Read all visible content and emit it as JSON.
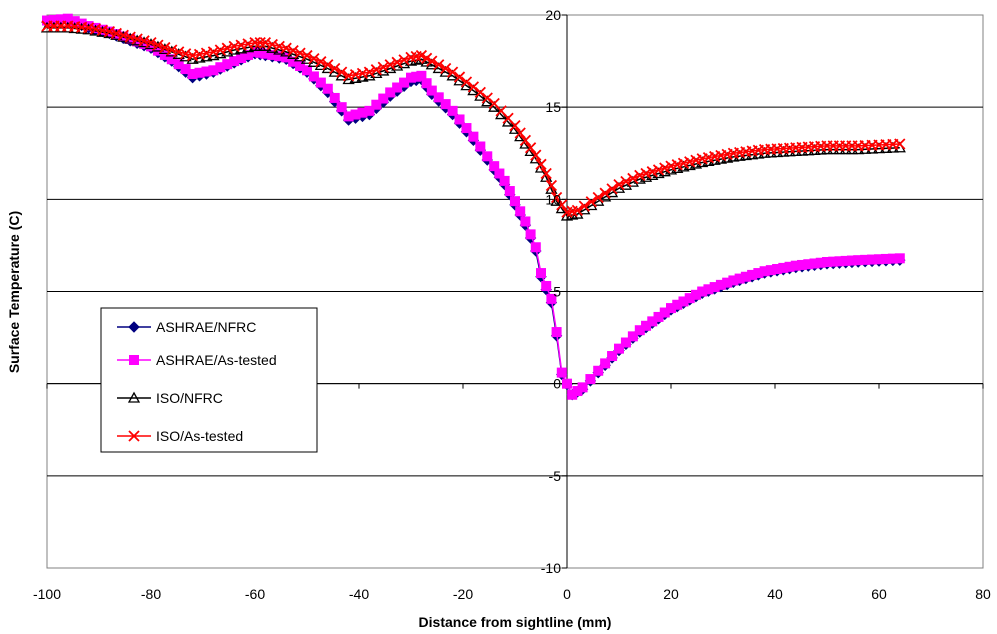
{
  "chart_data": {
    "type": "line",
    "title": "",
    "xlabel": "Distance from sightline (mm)",
    "ylabel": "Surface Temperature (C)",
    "xlim": [
      -100,
      80
    ],
    "ylim": [
      -10,
      20
    ],
    "xticks": [
      -100,
      -80,
      -60,
      -40,
      -20,
      0,
      20,
      40,
      60,
      80
    ],
    "yticks": [
      -10,
      -5,
      0,
      5,
      10,
      15,
      20
    ],
    "x_tick_labels": [
      "-100",
      "-80",
      "-60",
      "-40",
      "-20",
      "0",
      "20",
      "40",
      "60",
      "80"
    ],
    "y_tick_labels": [
      "-10",
      "-5",
      "0",
      "5",
      "10",
      "15",
      "20"
    ],
    "grid": "horizontal",
    "legend": "left",
    "series": [
      {
        "name": "ASHRAE/NFRC",
        "color": "#000080",
        "marker": "diamond",
        "points": [
          [
            -100,
            19.6
          ],
          [
            -96,
            19.7
          ],
          [
            -92,
            19.3
          ],
          [
            -88,
            19.0
          ],
          [
            -84,
            18.6
          ],
          [
            -80,
            18.2
          ],
          [
            -76,
            17.5
          ],
          [
            -72,
            16.6
          ],
          [
            -68,
            16.9
          ],
          [
            -64,
            17.4
          ],
          [
            -60,
            17.9
          ],
          [
            -58,
            17.8
          ],
          [
            -54,
            17.6
          ],
          [
            -50,
            16.9
          ],
          [
            -46,
            15.8
          ],
          [
            -42,
            14.3
          ],
          [
            -38,
            14.6
          ],
          [
            -34,
            15.6
          ],
          [
            -30,
            16.4
          ],
          [
            -28,
            16.5
          ],
          [
            -26,
            15.7
          ],
          [
            -22,
            14.6
          ],
          [
            -18,
            13.2
          ],
          [
            -14,
            11.6
          ],
          [
            -12,
            10.8
          ],
          [
            -10,
            9.7
          ],
          [
            -8,
            8.6
          ],
          [
            -6,
            7.2
          ],
          [
            -5,
            5.8
          ],
          [
            -3,
            4.4
          ],
          [
            -2,
            2.6
          ],
          [
            -1,
            0.5
          ],
          [
            1,
            -0.6
          ],
          [
            3,
            -0.3
          ],
          [
            6,
            0.6
          ],
          [
            10,
            1.8
          ],
          [
            14,
            2.8
          ],
          [
            20,
            4.0
          ],
          [
            26,
            4.9
          ],
          [
            32,
            5.5
          ],
          [
            38,
            6.0
          ],
          [
            44,
            6.3
          ],
          [
            50,
            6.5
          ],
          [
            56,
            6.6
          ],
          [
            64,
            6.7
          ]
        ]
      },
      {
        "name": "ASHRAE/As-tested",
        "color": "#ff00ff",
        "marker": "square",
        "points": [
          [
            -100,
            19.7
          ],
          [
            -96,
            19.8
          ],
          [
            -92,
            19.4
          ],
          [
            -88,
            19.1
          ],
          [
            -84,
            18.7
          ],
          [
            -80,
            18.3
          ],
          [
            -76,
            17.6
          ],
          [
            -72,
            16.8
          ],
          [
            -68,
            17.0
          ],
          [
            -64,
            17.5
          ],
          [
            -60,
            18.0
          ],
          [
            -58,
            17.9
          ],
          [
            -54,
            17.7
          ],
          [
            -50,
            17.0
          ],
          [
            -46,
            16.0
          ],
          [
            -42,
            14.5
          ],
          [
            -38,
            14.8
          ],
          [
            -34,
            15.8
          ],
          [
            -30,
            16.6
          ],
          [
            -28,
            16.7
          ],
          [
            -26,
            15.9
          ],
          [
            -22,
            14.8
          ],
          [
            -18,
            13.4
          ],
          [
            -14,
            11.8
          ],
          [
            -12,
            11.0
          ],
          [
            -10,
            9.9
          ],
          [
            -8,
            8.8
          ],
          [
            -6,
            7.4
          ],
          [
            -5,
            6.0
          ],
          [
            -3,
            4.6
          ],
          [
            -2,
            2.8
          ],
          [
            -1,
            0.6
          ],
          [
            1,
            -0.6
          ],
          [
            3,
            -0.2
          ],
          [
            6,
            0.7
          ],
          [
            10,
            1.9
          ],
          [
            14,
            2.9
          ],
          [
            20,
            4.1
          ],
          [
            26,
            5.0
          ],
          [
            32,
            5.6
          ],
          [
            38,
            6.1
          ],
          [
            44,
            6.4
          ],
          [
            50,
            6.6
          ],
          [
            56,
            6.7
          ],
          [
            64,
            6.8
          ]
        ]
      },
      {
        "name": "ISO/NFRC",
        "color": "#000000",
        "marker": "triangle",
        "points": [
          [
            -100,
            19.3
          ],
          [
            -96,
            19.3
          ],
          [
            -92,
            19.2
          ],
          [
            -88,
            19.0
          ],
          [
            -84,
            18.7
          ],
          [
            -80,
            18.4
          ],
          [
            -76,
            18.0
          ],
          [
            -72,
            17.6
          ],
          [
            -68,
            17.8
          ],
          [
            -64,
            18.1
          ],
          [
            -60,
            18.3
          ],
          [
            -58,
            18.3
          ],
          [
            -54,
            18.0
          ],
          [
            -50,
            17.6
          ],
          [
            -46,
            17.1
          ],
          [
            -42,
            16.5
          ],
          [
            -38,
            16.7
          ],
          [
            -34,
            17.1
          ],
          [
            -30,
            17.5
          ],
          [
            -28,
            17.6
          ],
          [
            -26,
            17.3
          ],
          [
            -22,
            16.7
          ],
          [
            -18,
            15.9
          ],
          [
            -14,
            15.0
          ],
          [
            -10,
            13.8
          ],
          [
            -8,
            13.0
          ],
          [
            -6,
            12.2
          ],
          [
            -4,
            11.2
          ],
          [
            -2,
            9.9
          ],
          [
            0,
            9.1
          ],
          [
            2,
            9.2
          ],
          [
            6,
            9.9
          ],
          [
            10,
            10.6
          ],
          [
            14,
            11.1
          ],
          [
            20,
            11.6
          ],
          [
            26,
            12.0
          ],
          [
            32,
            12.3
          ],
          [
            38,
            12.5
          ],
          [
            44,
            12.6
          ],
          [
            50,
            12.7
          ],
          [
            56,
            12.7
          ],
          [
            64,
            12.8
          ]
        ]
      },
      {
        "name": "ISO/As-tested",
        "color": "#ff0000",
        "marker": "x",
        "points": [
          [
            -100,
            19.4
          ],
          [
            -96,
            19.4
          ],
          [
            -92,
            19.3
          ],
          [
            -88,
            19.1
          ],
          [
            -84,
            18.8
          ],
          [
            -80,
            18.5
          ],
          [
            -76,
            18.1
          ],
          [
            -72,
            17.8
          ],
          [
            -68,
            18.0
          ],
          [
            -64,
            18.3
          ],
          [
            -60,
            18.5
          ],
          [
            -58,
            18.5
          ],
          [
            -54,
            18.2
          ],
          [
            -50,
            17.8
          ],
          [
            -46,
            17.3
          ],
          [
            -42,
            16.7
          ],
          [
            -38,
            16.9
          ],
          [
            -34,
            17.3
          ],
          [
            -30,
            17.7
          ],
          [
            -28,
            17.8
          ],
          [
            -26,
            17.5
          ],
          [
            -22,
            16.9
          ],
          [
            -18,
            16.1
          ],
          [
            -14,
            15.2
          ],
          [
            -10,
            14.0
          ],
          [
            -8,
            13.2
          ],
          [
            -6,
            12.4
          ],
          [
            -4,
            11.4
          ],
          [
            -2,
            10.1
          ],
          [
            0,
            9.3
          ],
          [
            2,
            9.4
          ],
          [
            6,
            10.1
          ],
          [
            10,
            10.8
          ],
          [
            14,
            11.3
          ],
          [
            20,
            11.8
          ],
          [
            26,
            12.2
          ],
          [
            32,
            12.5
          ],
          [
            38,
            12.7
          ],
          [
            44,
            12.8
          ],
          [
            50,
            12.9
          ],
          [
            56,
            12.9
          ],
          [
            64,
            13.0
          ]
        ]
      }
    ]
  }
}
